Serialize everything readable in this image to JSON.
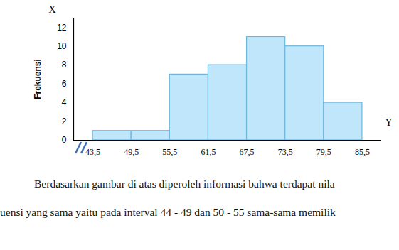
{
  "chart_data": {
    "type": "histogram",
    "y_label": "Frekuensi",
    "bins": [
      43.5,
      49.5,
      55.5,
      61.5,
      67.5,
      73.5,
      79.5,
      85.5
    ],
    "values": [
      1,
      1,
      7,
      8,
      11,
      10,
      4
    ],
    "color": "#bfe6fa",
    "xlim": [
      40.5,
      88.5
    ],
    "xticks": [
      {
        "value": 43.5,
        "label": "43,5"
      },
      {
        "value": 49.5,
        "label": "49,5"
      },
      {
        "value": 55.5,
        "label": "55,5"
      },
      {
        "value": 61.5,
        "label": "61,5"
      },
      {
        "value": 67.5,
        "label": "67,5"
      },
      {
        "value": 73.5,
        "label": "73,5"
      },
      {
        "value": 79.5,
        "label": "79,5"
      },
      {
        "value": 85.5,
        "label": "85,5"
      }
    ],
    "ylim": [
      0,
      13
    ],
    "yticks": [
      0,
      2,
      4,
      6,
      8,
      10,
      12
    ],
    "grid": false,
    "annotations": [
      "X",
      "Y"
    ],
    "caption": [
      "Berdasarkan gambar di atas diperoleh informasi bahwa terdapat nila",
      "uensi yang sama yaitu pada interval 44 - 49 dan 50 - 55 sama-sama memilik"
    ]
  }
}
